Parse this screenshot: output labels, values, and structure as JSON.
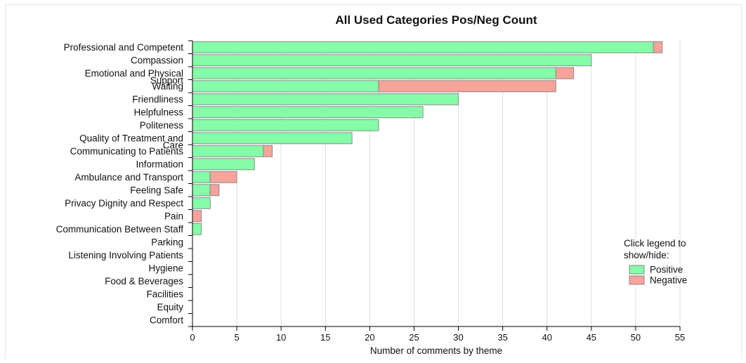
{
  "chart_data": {
    "type": "bar",
    "orientation": "horizontal",
    "stacked": true,
    "title": "All Used Categories Pos/Neg Count",
    "xlabel": "Number of comments by theme",
    "ylabel": "",
    "xlim": [
      0,
      55
    ],
    "x_ticks": [
      "0",
      "5",
      "10",
      "15",
      "20",
      "25",
      "30",
      "35",
      "40",
      "45",
      "50",
      "55"
    ],
    "grid": "vertical",
    "categories": [
      "Professional and Competent",
      "Compassion",
      "Emotional and Physical Support",
      "Waiting",
      "Friendliness",
      "Helpfulness",
      "Politeness",
      "Quality of Treatment and Care",
      "Communicating to Patients",
      "Information",
      "Ambulance and Transport",
      "Feeling Safe",
      "Privacy Dignity and Respect",
      "Pain",
      "Communication Between Staff",
      "Parking",
      "Listening Involving Patients",
      "Hygiene",
      "Food & Beverages",
      "Facilities",
      "Equity",
      "Comfort"
    ],
    "series": [
      {
        "name": "Positive",
        "color": "#84fca8",
        "values": [
          52,
          45,
          41,
          21,
          30,
          26,
          21,
          18,
          8,
          7,
          2,
          2,
          2,
          0,
          1,
          0,
          0,
          0,
          0,
          0,
          0,
          0
        ]
      },
      {
        "name": "Negative",
        "color": "#f8a39a",
        "values": [
          1,
          0,
          2,
          20,
          0,
          0,
          0,
          0,
          1,
          0,
          3,
          1,
          0,
          1,
          0,
          0,
          0,
          0,
          0,
          0,
          0,
          0
        ]
      }
    ],
    "legend": {
      "title": "Click legend to show/hide:",
      "placement": "right"
    }
  }
}
